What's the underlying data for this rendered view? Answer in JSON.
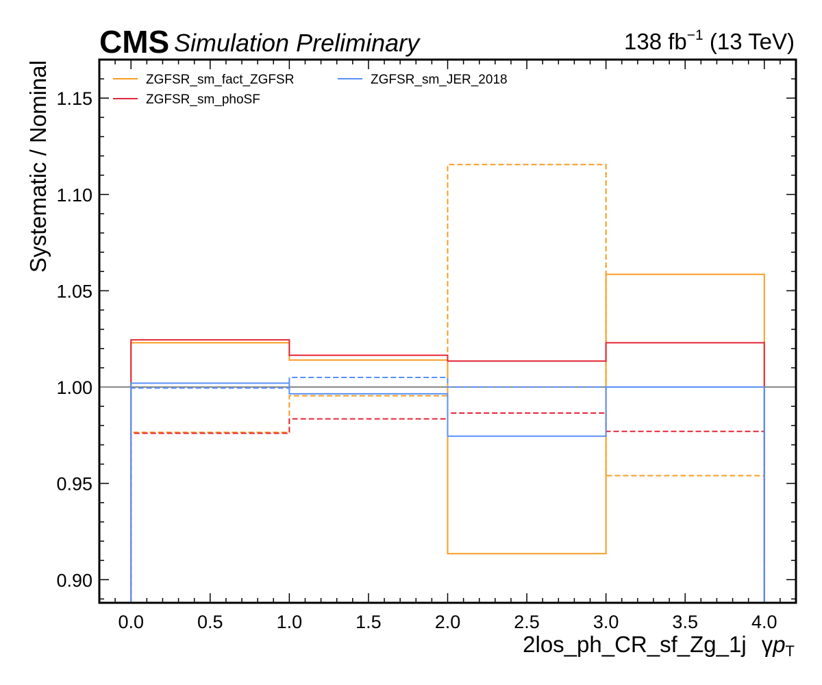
{
  "header": {
    "experiment": "CMS",
    "status": "Simulation Preliminary",
    "lumi_value": "138 fb",
    "lumi_exp": "−1",
    "energy": " (13 TeV)"
  },
  "chart_data": {
    "type": "line",
    "style": "step",
    "xlabel": "2los_ph_CR_sf_Zg_1j",
    "xlabel_var": "γ",
    "xlabel_var_p": "p",
    "xlabel_var_sub": "T",
    "ylabel": "Systematic / Nominal",
    "xlim": [
      -0.2,
      4.2
    ],
    "ylim": [
      0.888,
      1.17
    ],
    "xticks": [
      0.0,
      0.5,
      1.0,
      1.5,
      2.0,
      2.5,
      3.0,
      3.5,
      4.0
    ],
    "xtick_labels": [
      "0.0",
      "0.5",
      "1.0",
      "1.5",
      "2.0",
      "2.5",
      "3.0",
      "3.5",
      "4.0"
    ],
    "yticks": [
      0.9,
      0.95,
      1.0,
      1.05,
      1.1,
      1.15
    ],
    "ytick_labels": [
      "0.90",
      "0.95",
      "1.00",
      "1.05",
      "1.10",
      "1.15"
    ],
    "bin_edges": [
      0,
      1,
      2,
      3,
      4
    ],
    "reference_line": 1.0,
    "legend_position": "top-left",
    "legend_columns": 2,
    "series": [
      {
        "name": "ZGFSR_sm_fact_ZGFSR",
        "color": "#f89c20",
        "up": [
          1.023,
          1.014,
          0.9135,
          1.0585
        ],
        "down": [
          0.9765,
          0.9955,
          1.1155,
          0.954
        ]
      },
      {
        "name": "ZGFSR_sm_phoSF",
        "color": "#e42536",
        "up": [
          1.0245,
          1.0165,
          1.0135,
          1.023
        ],
        "down": [
          0.976,
          0.9835,
          0.9865,
          0.977
        ]
      },
      {
        "name": "ZGFSR_sm_JER_2018",
        "color": "#5790fc",
        "up": [
          1.002,
          0.9965,
          0.9745,
          1.0
        ],
        "down": [
          0.9995,
          1.005,
          1.0,
          1.0
        ]
      }
    ]
  }
}
